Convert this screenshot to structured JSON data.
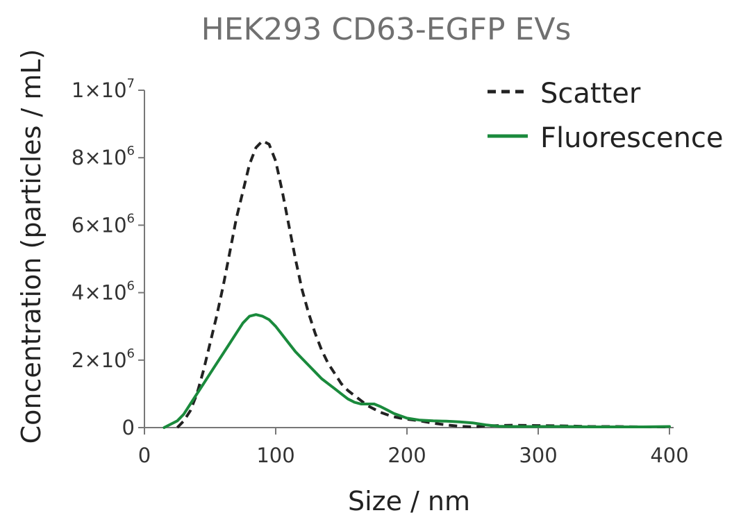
{
  "chart_data": {
    "type": "line",
    "title": "HEK293 CD63-EGFP EVs",
    "xlabel": "Size / nm",
    "ylabel": "Concentration (particles / mL)",
    "xlim": [
      0,
      400
    ],
    "ylim": [
      0,
      10000000
    ],
    "x_ticks": [
      0,
      100,
      200,
      300,
      400
    ],
    "y_ticks": [
      {
        "value": 0,
        "mantissa": "0",
        "exponent": ""
      },
      {
        "value": 2000000,
        "mantissa": "2×10",
        "exponent": "6"
      },
      {
        "value": 4000000,
        "mantissa": "4×10",
        "exponent": "6"
      },
      {
        "value": 6000000,
        "mantissa": "6×10",
        "exponent": "6"
      },
      {
        "value": 8000000,
        "mantissa": "8×10",
        "exponent": "6"
      },
      {
        "value": 10000000,
        "mantissa": "1×10",
        "exponent": "7"
      }
    ],
    "grid": false,
    "legend_position": "top-right",
    "series": [
      {
        "name": "Scatter",
        "style": "dashed",
        "color": "#222222",
        "x": [
          25,
          30,
          35,
          40,
          45,
          50,
          55,
          60,
          65,
          70,
          75,
          80,
          85,
          90,
          95,
          100,
          105,
          110,
          115,
          120,
          125,
          130,
          135,
          140,
          145,
          150,
          155,
          160,
          165,
          170,
          175,
          180,
          185,
          190,
          195,
          200,
          210,
          220,
          230,
          240,
          250,
          260,
          270,
          280,
          300,
          320,
          340,
          360,
          380,
          400
        ],
        "y": [
          0,
          200000,
          500000,
          1000000,
          1700000,
          2500000,
          3300000,
          4200000,
          5200000,
          6200000,
          7000000,
          7800000,
          8300000,
          8500000,
          8400000,
          7900000,
          7000000,
          6000000,
          5000000,
          4100000,
          3400000,
          2800000,
          2300000,
          1900000,
          1600000,
          1300000,
          1100000,
          950000,
          800000,
          650000,
          550000,
          450000,
          380000,
          320000,
          280000,
          250000,
          200000,
          130000,
          80000,
          40000,
          20000,
          50000,
          60000,
          70000,
          60000,
          50000,
          30000,
          30000,
          20000,
          20000
        ]
      },
      {
        "name": "Fluorescence",
        "style": "solid",
        "color": "#1a8a3c",
        "x": [
          15,
          20,
          25,
          30,
          35,
          40,
          45,
          50,
          55,
          60,
          65,
          70,
          75,
          80,
          85,
          90,
          95,
          100,
          105,
          110,
          115,
          120,
          125,
          130,
          135,
          140,
          145,
          150,
          155,
          160,
          165,
          170,
          175,
          180,
          185,
          190,
          195,
          200,
          210,
          220,
          230,
          240,
          250,
          260,
          270,
          280,
          300,
          320,
          340,
          360,
          380,
          400
        ],
        "y": [
          0,
          100000,
          200000,
          400000,
          700000,
          1000000,
          1300000,
          1600000,
          1900000,
          2200000,
          2500000,
          2800000,
          3100000,
          3300000,
          3350000,
          3300000,
          3200000,
          3000000,
          2750000,
          2500000,
          2250000,
          2050000,
          1850000,
          1650000,
          1450000,
          1300000,
          1150000,
          1000000,
          850000,
          750000,
          700000,
          700000,
          700000,
          620000,
          520000,
          420000,
          350000,
          280000,
          220000,
          200000,
          190000,
          170000,
          140000,
          80000,
          40000,
          30000,
          30000,
          30000,
          20000,
          20000,
          20000,
          30000
        ]
      }
    ]
  }
}
